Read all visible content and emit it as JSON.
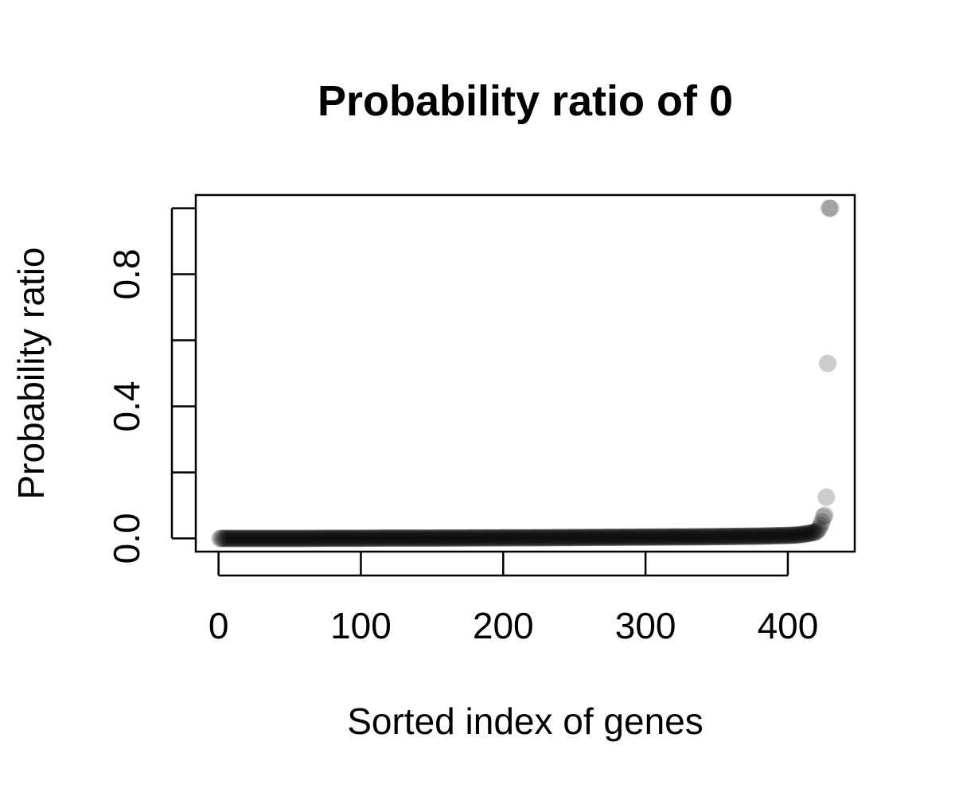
{
  "chart_data": {
    "type": "scatter",
    "title": "Probability ratio of 0",
    "xlabel": "Sorted index of genes",
    "ylabel": "Probability ratio",
    "xlim": [
      -16,
      447
    ],
    "ylim": [
      -0.04,
      1.04
    ],
    "x_ticks": [
      0,
      100,
      200,
      300,
      400
    ],
    "x_tick_labels": [
      "0",
      "100",
      "200",
      "300",
      "400"
    ],
    "y_ticks": [
      0.0,
      0.2,
      0.4,
      0.6,
      0.8,
      1.0
    ],
    "y_tick_labels": [
      "0.0",
      "",
      "0.4",
      "",
      "0.8",
      ""
    ],
    "grid": false,
    "legend": "none",
    "point_color": "#000000",
    "point_opacity": 0.2,
    "n_points": 430,
    "series": [
      {
        "x": [
          1,
          20,
          40,
          60,
          80,
          100,
          120,
          140,
          160,
          180,
          200,
          220,
          240,
          260,
          280,
          300,
          320,
          340,
          360,
          380,
          390,
          400,
          405,
          410,
          413,
          416,
          418,
          420,
          421,
          422,
          423,
          424,
          425,
          426,
          427,
          428,
          429,
          430
        ],
        "values": [
          0.0,
          0.0,
          0.0,
          0.0,
          0.0005,
          0.0005,
          0.001,
          0.001,
          0.0012,
          0.0015,
          0.0018,
          0.002,
          0.0025,
          0.003,
          0.0035,
          0.004,
          0.0045,
          0.005,
          0.006,
          0.007,
          0.008,
          0.009,
          0.01,
          0.012,
          0.014,
          0.016,
          0.018,
          0.02,
          0.025,
          0.03,
          0.04,
          0.05,
          0.065,
          0.07,
          0.125,
          0.53,
          1.0,
          1.0
        ]
      }
    ]
  }
}
